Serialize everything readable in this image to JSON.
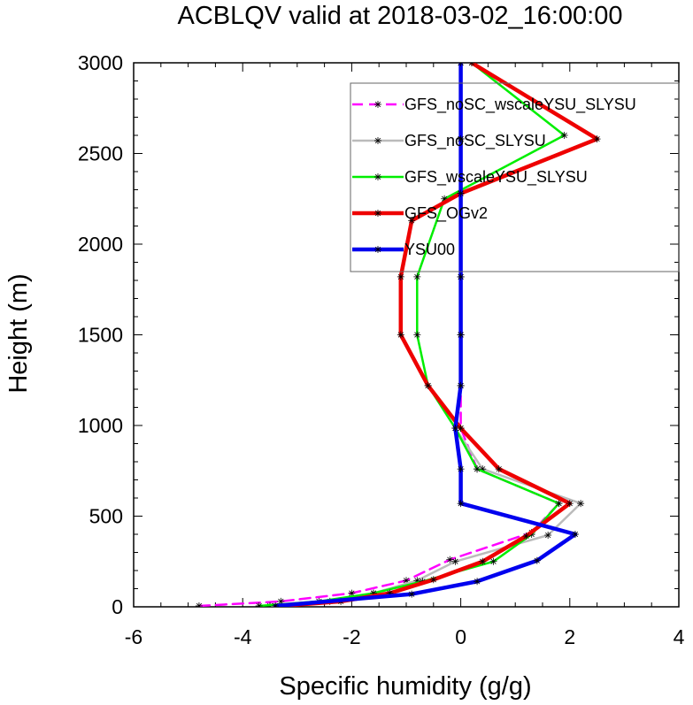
{
  "chart_data": {
    "type": "line",
    "title": "ACBLQV valid at 2018-03-02_16:00:00",
    "xlabel": "Specific humidity (g/g)",
    "ylabel": "Height (m)",
    "xlim": [
      -6,
      4
    ],
    "ylim": [
      0,
      3000
    ],
    "xticks": [
      "-6",
      "-4",
      "-2",
      "0",
      "2",
      "4"
    ],
    "yticks": [
      "0",
      "500",
      "1000",
      "1500",
      "2000",
      "2500",
      "3000"
    ],
    "legend_position": "top-right",
    "series": [
      {
        "name": "GFS_noSC_wscaleYSU_SLYSU",
        "color": "#ff00ff",
        "dash": "dashed",
        "width": "medium",
        "points": [
          [
            -4.8,
            5
          ],
          [
            -3.3,
            30
          ],
          [
            -2.0,
            75
          ],
          [
            -1.0,
            145
          ],
          [
            -0.2,
            260
          ],
          [
            1.3,
            410
          ],
          [
            1.8,
            570
          ],
          [
            0.3,
            760
          ],
          [
            0.0,
            985
          ],
          [
            0.0,
            1220
          ],
          [
            0.0,
            1500
          ],
          [
            0.0,
            1820
          ],
          [
            0.0,
            2280
          ],
          [
            0.0,
            2580
          ],
          [
            0.0,
            3000
          ]
        ]
      },
      {
        "name": "GFS_noSC_SLYSU",
        "color": "#bbbbbb",
        "dash": "solid",
        "width": "medium",
        "points": [
          [
            -3.5,
            5
          ],
          [
            -2.4,
            30
          ],
          [
            -1.6,
            75
          ],
          [
            -0.8,
            145
          ],
          [
            -0.1,
            250
          ],
          [
            1.6,
            395
          ],
          [
            2.2,
            570
          ],
          [
            0.4,
            760
          ],
          [
            -0.1,
            985
          ],
          [
            0.0,
            1220
          ],
          [
            0.0,
            1500
          ],
          [
            0.0,
            1820
          ],
          [
            0.0,
            2280
          ],
          [
            0.0,
            2580
          ],
          [
            0.0,
            3000
          ]
        ]
      },
      {
        "name": "GFS_wscaleYSU_SLYSU",
        "color": "#00ee00",
        "dash": "solid",
        "width": "medium",
        "points": [
          [
            -3.7,
            5
          ],
          [
            -2.6,
            30
          ],
          [
            -1.6,
            75
          ],
          [
            -0.7,
            140
          ],
          [
            0.6,
            250
          ],
          [
            1.3,
            400
          ],
          [
            1.8,
            570
          ],
          [
            0.3,
            760
          ],
          [
            -0.1,
            985
          ],
          [
            -0.6,
            1220
          ],
          [
            -0.8,
            1500
          ],
          [
            -0.8,
            1820
          ],
          [
            -0.3,
            2250
          ],
          [
            1.9,
            2600
          ],
          [
            0.2,
            3000
          ]
        ]
      },
      {
        "name": "GFS_OGv2",
        "color": "#ee0000",
        "dash": "solid",
        "width": "thick",
        "points": [
          [
            -3.3,
            5
          ],
          [
            -2.2,
            30
          ],
          [
            -1.3,
            75
          ],
          [
            -0.5,
            150
          ],
          [
            0.4,
            250
          ],
          [
            1.2,
            390
          ],
          [
            2.0,
            570
          ],
          [
            0.7,
            760
          ],
          [
            0.0,
            985
          ],
          [
            -0.6,
            1220
          ],
          [
            -1.1,
            1500
          ],
          [
            -1.1,
            1820
          ],
          [
            -0.9,
            2130
          ],
          [
            0.0,
            2280
          ],
          [
            2.5,
            2580
          ],
          [
            0.2,
            3000
          ]
        ]
      },
      {
        "name": "YSU00",
        "color": "#0000ee",
        "dash": "solid",
        "width": "thick",
        "points": [
          [
            -3.4,
            5
          ],
          [
            -0.9,
            70
          ],
          [
            0.3,
            140
          ],
          [
            1.4,
            255
          ],
          [
            2.1,
            400
          ],
          [
            0.0,
            570
          ],
          [
            0.0,
            760
          ],
          [
            -0.1,
            985
          ],
          [
            0.0,
            1220
          ],
          [
            0.0,
            1500
          ],
          [
            0.0,
            1820
          ],
          [
            0.0,
            2280
          ],
          [
            0.0,
            2580
          ],
          [
            0.0,
            3000
          ]
        ]
      }
    ]
  }
}
